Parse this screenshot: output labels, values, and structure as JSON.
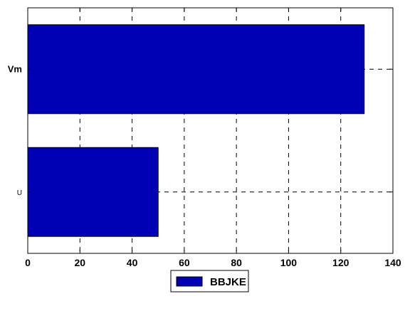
{
  "chart_data": {
    "type": "bar",
    "orientation": "horizontal",
    "categories": [
      "U",
      "Vm"
    ],
    "series": [
      {
        "name": "BBJKE",
        "values": [
          50,
          129
        ]
      }
    ],
    "xlim": [
      0,
      140
    ],
    "xticks": [
      "0",
      "20",
      "40",
      "60",
      "80",
      "100",
      "120",
      "140"
    ],
    "grid": true,
    "legend": "bottom-center",
    "colors": {
      "bar": "#0000b4",
      "edge": "#000000",
      "grid": "#000000",
      "background": "#ffffff"
    }
  }
}
